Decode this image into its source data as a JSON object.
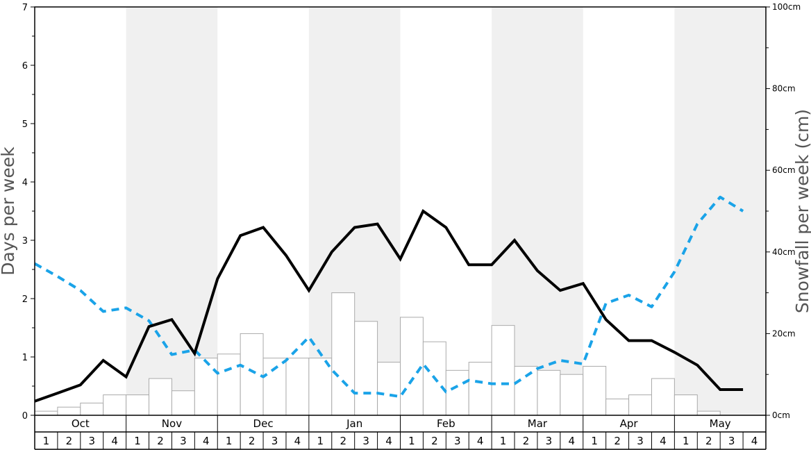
{
  "chart_data": {
    "type": "bar",
    "ylabel_left": "Days per week",
    "ylabel_right": "Snowfall per week (cm)",
    "ylim_left": [
      0,
      7
    ],
    "ylim_right": [
      0,
      100
    ],
    "left_ticks": [
      "0",
      "1",
      "2",
      "3",
      "4",
      "5",
      "6",
      "7"
    ],
    "right_ticks": [
      "0cm",
      "20cm",
      "40cm",
      "60cm",
      "80cm",
      "100cm"
    ],
    "months": [
      "Oct",
      "Nov",
      "Dec",
      "Jan",
      "Feb",
      "Mar",
      "Apr",
      "May"
    ],
    "weeks": [
      "1",
      "2",
      "3",
      "4"
    ],
    "shaded_months": [
      false,
      true,
      false,
      true,
      false,
      true,
      false,
      true
    ],
    "colors": {
      "solid_line": "#000000",
      "dashed_line": "#1aa3e8",
      "bar_fill": "#ffffff",
      "bar_stroke": "#aaaaaa",
      "shade": "#f0f0f0"
    },
    "series": [
      {
        "kind": "bar",
        "axis": "right",
        "unit": "cm",
        "values": [
          1,
          2,
          3,
          5,
          5,
          9,
          6,
          14,
          15,
          20,
          14,
          14,
          14,
          30,
          23,
          13,
          24,
          18,
          11,
          13,
          22,
          12,
          11,
          10,
          12,
          4,
          5,
          9,
          5,
          1,
          0,
          0
        ]
      },
      {
        "kind": "line",
        "style": "solid",
        "axis": "left",
        "values": [
          0.24,
          0.38,
          0.52,
          0.94,
          0.66,
          1.52,
          1.64,
          1.06,
          2.34,
          3.08,
          3.22,
          2.74,
          2.14,
          2.8,
          3.22,
          3.28,
          2.68,
          3.5,
          3.22,
          2.58,
          2.58,
          3.0,
          2.48,
          2.14,
          2.26,
          1.64,
          1.28,
          1.28,
          1.08,
          0.86,
          0.44,
          0.44
        ]
      },
      {
        "kind": "line",
        "style": "dashed",
        "axis": "left",
        "values": [
          2.6,
          2.38,
          2.14,
          1.78,
          1.84,
          1.62,
          1.04,
          1.12,
          0.72,
          0.86,
          0.66,
          0.94,
          1.34,
          0.78,
          0.38,
          0.38,
          0.32,
          0.88,
          0.4,
          0.6,
          0.54,
          0.54,
          0.8,
          0.94,
          0.88,
          1.92,
          2.06,
          1.86,
          2.46,
          3.28,
          3.74,
          3.5
        ]
      }
    ]
  }
}
